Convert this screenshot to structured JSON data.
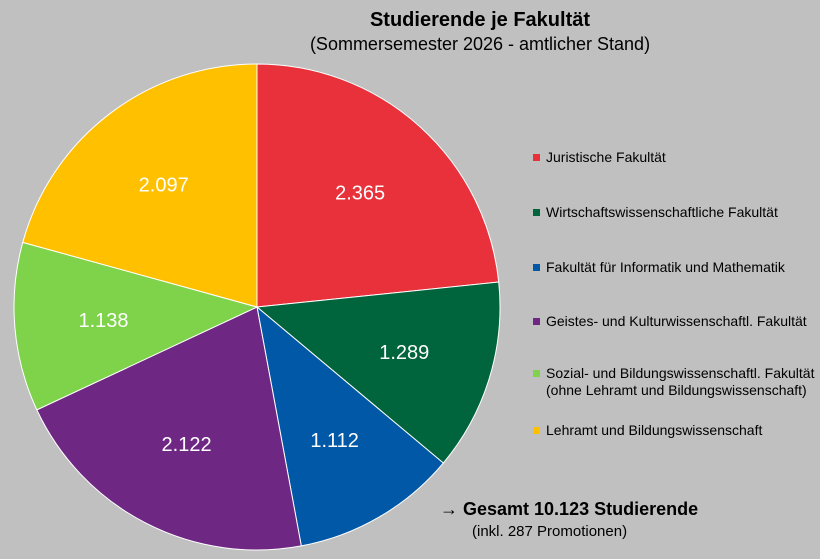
{
  "chart_data": {
    "type": "pie",
    "title": "Studierende je Fakultät",
    "subtitle": "(Sommersemester 2026 - amtlicher Stand)",
    "slices": [
      {
        "label": "Juristische Fakultät",
        "value": 2365,
        "display": "2.365",
        "color": "#e8313a"
      },
      {
        "label": "Wirtschaftswissenschaftliche Fakultät",
        "value": 1289,
        "display": "1.289",
        "color": "#00643c"
      },
      {
        "label": "Fakultät für Informatik und Mathematik",
        "value": 1112,
        "display": "1.112",
        "color": "#0058a6"
      },
      {
        "label": "Geistes- und Kulturwissenschaftl. Fakultät",
        "value": 2122,
        "display": "2.122",
        "color": "#6f2784"
      },
      {
        "label": "Sozial- und Bildungswissenschaftl. Fakultät\n(ohne Lehramt und Bildungswissenschaft)",
        "value": 1138,
        "display": "1.138",
        "color": "#7ed34a"
      },
      {
        "label": "Lehramt und Bildungswissenschaft",
        "value": 2097,
        "display": "2.097",
        "color": "#ffc000"
      }
    ],
    "legend_position": "right",
    "total_text": "→ Gesamt 10.123 Studierende",
    "total_note": "(inkl. 287 Promotionen)"
  }
}
